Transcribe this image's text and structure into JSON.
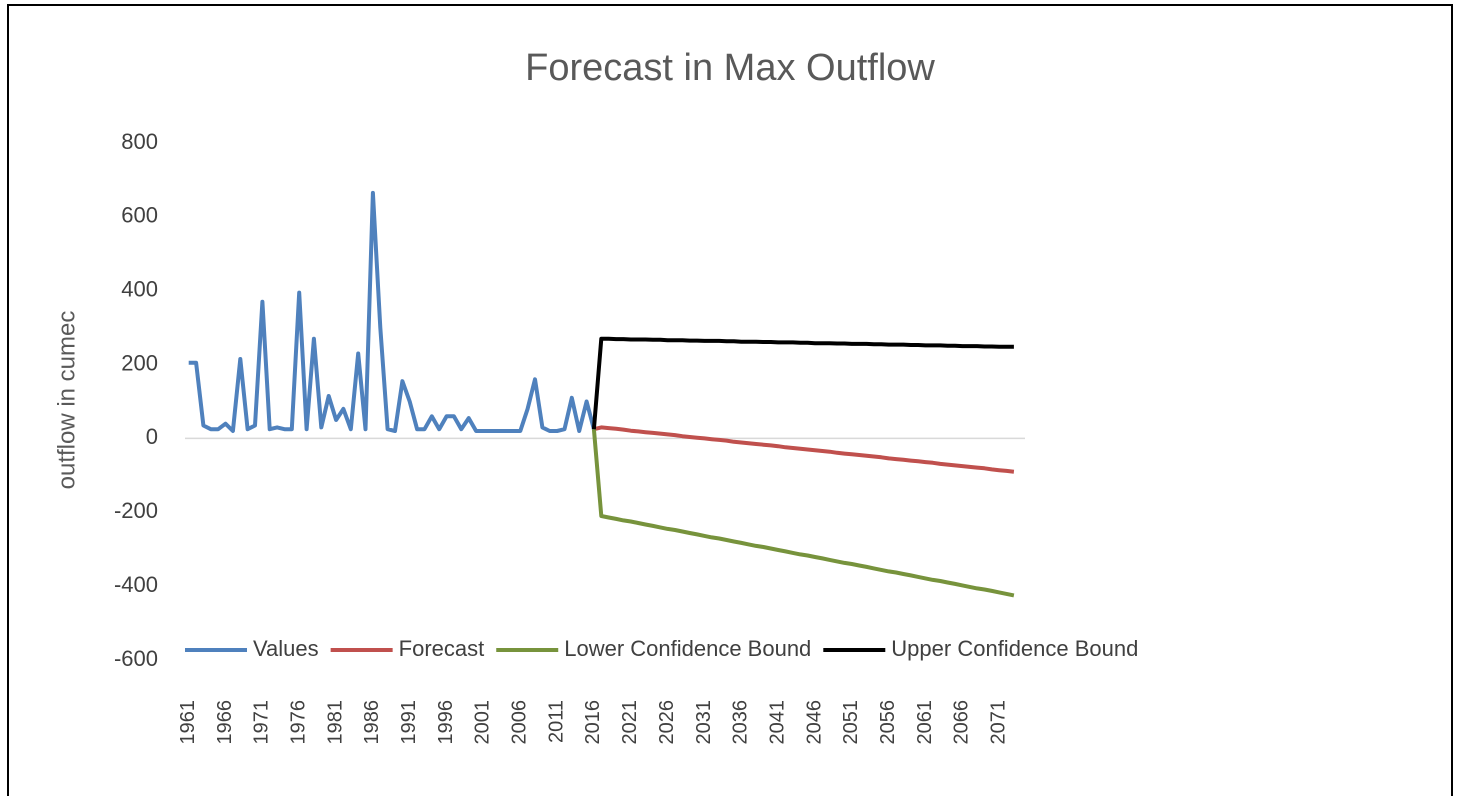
{
  "chart_data": {
    "type": "line",
    "title": "Forecast in Max Outflow",
    "y_label": "outflow in cumec",
    "x": [
      1961,
      1962,
      1963,
      1964,
      1965,
      1966,
      1967,
      1968,
      1969,
      1970,
      1971,
      1972,
      1973,
      1974,
      1975,
      1976,
      1977,
      1978,
      1979,
      1980,
      1981,
      1982,
      1983,
      1984,
      1985,
      1986,
      1987,
      1988,
      1989,
      1990,
      1991,
      1992,
      1993,
      1994,
      1995,
      1996,
      1997,
      1998,
      1999,
      2000,
      2001,
      2002,
      2003,
      2004,
      2005,
      2006,
      2007,
      2008,
      2009,
      2010,
      2011,
      2012,
      2013,
      2014,
      2015,
      2016,
      2017,
      2018,
      2019,
      2020,
      2021,
      2022,
      2023,
      2024,
      2025,
      2026,
      2027,
      2028,
      2029,
      2030,
      2031,
      2032,
      2033,
      2034,
      2035,
      2036,
      2037,
      2038,
      2039,
      2040,
      2041,
      2042,
      2043,
      2044,
      2045,
      2046,
      2047,
      2048,
      2049,
      2050,
      2051,
      2052,
      2053,
      2054,
      2055,
      2056,
      2057,
      2058,
      2059,
      2060,
      2061,
      2062,
      2063,
      2064,
      2065,
      2066,
      2067,
      2068,
      2069,
      2070,
      2071,
      2072,
      2073
    ],
    "series": [
      {
        "name": "Values",
        "color": "#4f81bd",
        "values": [
          205,
          205,
          35,
          25,
          25,
          40,
          20,
          215,
          25,
          35,
          370,
          25,
          30,
          25,
          25,
          395,
          25,
          270,
          30,
          115,
          50,
          80,
          25,
          230,
          25,
          665,
          300,
          25,
          20,
          155,
          100,
          25,
          25,
          60,
          25,
          60,
          60,
          25,
          55,
          20,
          20,
          20,
          20,
          20,
          20,
          20,
          80,
          160,
          30,
          20,
          20,
          25,
          110,
          20,
          100,
          25,
          null,
          null,
          null,
          null,
          null,
          null,
          null,
          null,
          null,
          null,
          null,
          null,
          null,
          null,
          null,
          null,
          null,
          null,
          null,
          null,
          null,
          null,
          null,
          null,
          null,
          null,
          null,
          null,
          null,
          null,
          null,
          null,
          null,
          null,
          null,
          null,
          null,
          null,
          null,
          null,
          null,
          null,
          null,
          null,
          null,
          null,
          null,
          null,
          null,
          null,
          null,
          null,
          null,
          null,
          null,
          null,
          null
        ]
      },
      {
        "name": "Forecast",
        "color": "#c0504d",
        "values": [
          null,
          null,
          null,
          null,
          null,
          null,
          null,
          null,
          null,
          null,
          null,
          null,
          null,
          null,
          null,
          null,
          null,
          null,
          null,
          null,
          null,
          null,
          null,
          null,
          null,
          null,
          null,
          null,
          null,
          null,
          null,
          null,
          null,
          null,
          null,
          null,
          null,
          null,
          null,
          null,
          null,
          null,
          null,
          null,
          null,
          null,
          null,
          null,
          null,
          null,
          null,
          null,
          null,
          null,
          null,
          25,
          30,
          28,
          26,
          24,
          21,
          19,
          17,
          15,
          13,
          11,
          9,
          6,
          4,
          2,
          0,
          -2,
          -4,
          -6,
          -9,
          -11,
          -13,
          -15,
          -17,
          -19,
          -21,
          -24,
          -26,
          -28,
          -30,
          -32,
          -34,
          -36,
          -39,
          -41,
          -43,
          -45,
          -47,
          -49,
          -51,
          -54,
          -56,
          -58,
          -60,
          -62,
          -64,
          -66,
          -69,
          -71,
          -73,
          -75,
          -77,
          -79,
          -81,
          -84,
          -86,
          -88,
          -90
        ]
      },
      {
        "name": "Lower Confidence Bound",
        "color": "#77933c",
        "values": [
          null,
          null,
          null,
          null,
          null,
          null,
          null,
          null,
          null,
          null,
          null,
          null,
          null,
          null,
          null,
          null,
          null,
          null,
          null,
          null,
          null,
          null,
          null,
          null,
          null,
          null,
          null,
          null,
          null,
          null,
          null,
          null,
          null,
          null,
          null,
          null,
          null,
          null,
          null,
          null,
          null,
          null,
          null,
          null,
          null,
          null,
          null,
          null,
          null,
          null,
          null,
          null,
          null,
          null,
          null,
          25,
          -210,
          -214,
          -218,
          -222,
          -225,
          -229,
          -233,
          -237,
          -241,
          -245,
          -248,
          -252,
          -256,
          -260,
          -264,
          -268,
          -271,
          -275,
          -279,
          -283,
          -287,
          -291,
          -294,
          -298,
          -302,
          -306,
          -310,
          -314,
          -317,
          -321,
          -325,
          -329,
          -333,
          -337,
          -340,
          -344,
          -348,
          -352,
          -356,
          -360,
          -363,
          -367,
          -371,
          -375,
          -379,
          -383,
          -386,
          -390,
          -394,
          -398,
          -402,
          -406,
          -409,
          -413,
          -417,
          -421,
          -425
        ]
      },
      {
        "name": "Upper Confidence Bound",
        "color": "#000000",
        "values": [
          null,
          null,
          null,
          null,
          null,
          null,
          null,
          null,
          null,
          null,
          null,
          null,
          null,
          null,
          null,
          null,
          null,
          null,
          null,
          null,
          null,
          null,
          null,
          null,
          null,
          null,
          null,
          null,
          null,
          null,
          null,
          null,
          null,
          null,
          null,
          null,
          null,
          null,
          null,
          null,
          null,
          null,
          null,
          null,
          null,
          null,
          null,
          null,
          null,
          null,
          null,
          null,
          null,
          null,
          null,
          25,
          270,
          270,
          269,
          269,
          268,
          268,
          268,
          267,
          267,
          266,
          266,
          266,
          265,
          265,
          264,
          264,
          264,
          263,
          263,
          262,
          262,
          262,
          261,
          261,
          260,
          260,
          260,
          259,
          259,
          258,
          258,
          258,
          257,
          257,
          256,
          256,
          256,
          255,
          255,
          254,
          254,
          254,
          253,
          253,
          252,
          252,
          252,
          251,
          251,
          250,
          250,
          250,
          249,
          249,
          248,
          248,
          248
        ]
      }
    ],
    "xlim": [
      1960.5,
      2074.5
    ],
    "xticks": [
      1961,
      1966,
      1971,
      1976,
      1981,
      1986,
      1991,
      1996,
      2001,
      2006,
      2011,
      2016,
      2021,
      2026,
      2031,
      2036,
      2041,
      2046,
      2051,
      2056,
      2061,
      2066,
      2071
    ],
    "ylim": [
      -600,
      800
    ],
    "yticks": [
      -600,
      -400,
      -200,
      0,
      200,
      400,
      600,
      800
    ],
    "grid": false,
    "legend": "bottom"
  }
}
